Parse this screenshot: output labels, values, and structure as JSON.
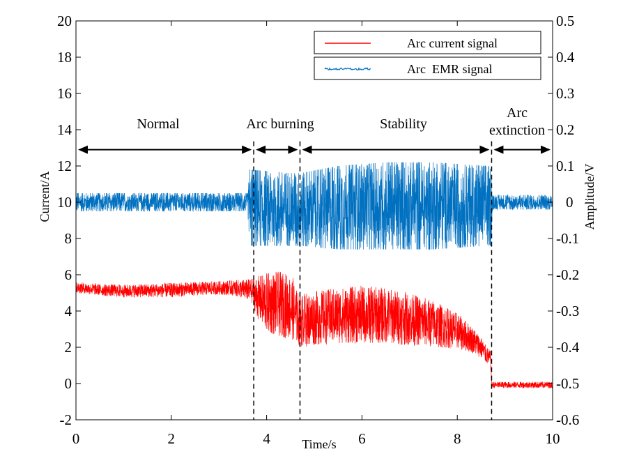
{
  "chart_data": {
    "type": "line",
    "x": {
      "label": "Time/s",
      "lim": [
        0,
        10
      ],
      "ticks": [
        0,
        2,
        4,
        6,
        8,
        10
      ]
    },
    "y_left": {
      "label": "Current/A",
      "lim": [
        -2,
        20
      ],
      "ticks": [
        -2,
        0,
        2,
        4,
        6,
        8,
        10,
        12,
        14,
        16,
        18,
        20
      ]
    },
    "y_right": {
      "label": "Amplitude/V",
      "lim": [
        -0.6,
        0.5
      ],
      "ticks": [
        "-0.6",
        "-0.5",
        "-0.4",
        "-0.3",
        "-0.2",
        "-0.1",
        "0",
        "0.1",
        "0.2",
        "0.3",
        "0.4",
        "0.5"
      ]
    },
    "series": [
      {
        "name": "Arc current signal",
        "axis": "left",
        "color": "#ff0000",
        "envelope_t": [
          0,
          0.5,
          1.0,
          1.5,
          2.0,
          2.5,
          3.0,
          3.3,
          3.6,
          3.7,
          3.8,
          4.0,
          4.2,
          4.4,
          4.55,
          4.6,
          4.7,
          5.0,
          5.5,
          6.0,
          6.5,
          7.0,
          7.5,
          8.0,
          8.3,
          8.5,
          8.6,
          8.7,
          8.72,
          8.75,
          9.0,
          9.5,
          10.0
        ],
        "envelope_hi": [
          5.6,
          5.5,
          5.45,
          5.5,
          5.55,
          5.6,
          5.65,
          5.7,
          5.75,
          5.8,
          5.9,
          6.1,
          6.2,
          6.1,
          5.9,
          5.3,
          4.95,
          5.1,
          5.3,
          5.4,
          5.3,
          5.0,
          4.6,
          3.9,
          3.2,
          2.6,
          2.1,
          1.8,
          0.1,
          0.1,
          0.1,
          0.1,
          0.1
        ],
        "envelope_lo": [
          5.0,
          4.85,
          4.75,
          4.75,
          4.75,
          4.85,
          4.9,
          4.85,
          4.6,
          4.4,
          3.6,
          2.8,
          2.6,
          2.5,
          2.4,
          2.3,
          2.0,
          2.1,
          2.2,
          2.2,
          2.2,
          2.1,
          2.0,
          1.9,
          1.7,
          1.4,
          1.1,
          1.0,
          -0.25,
          -0.25,
          -0.25,
          -0.25,
          -0.25
        ]
      },
      {
        "name": "Arc  EMR signal",
        "axis": "right",
        "color": "#0070c0",
        "envelope_t": [
          0,
          3.6,
          3.65,
          4.5,
          4.7,
          5.5,
          6.5,
          7.5,
          8.6,
          8.7,
          8.75,
          10.0
        ],
        "envelope_hi": [
          0.025,
          0.025,
          0.09,
          0.08,
          0.08,
          0.1,
          0.11,
          0.11,
          0.1,
          0.1,
          0.02,
          0.02
        ],
        "envelope_lo": [
          -0.025,
          -0.025,
          -0.12,
          -0.12,
          -0.12,
          -0.13,
          -0.13,
          -0.13,
          -0.12,
          -0.12,
          -0.02,
          -0.02
        ]
      }
    ],
    "markers": {
      "dashed_x": [
        3.73,
        4.7,
        8.72
      ],
      "phases": [
        {
          "label": "Normal",
          "from": 0,
          "to": 3.73
        },
        {
          "label": "Arc burning",
          "from": 3.73,
          "to": 4.7
        },
        {
          "label": "Stability",
          "from": 4.7,
          "to": 8.72
        },
        {
          "label_line1": "Arc",
          "label_line2": "extinction",
          "from": 8.72,
          "to": 10.0
        }
      ],
      "arrow_y": 12.9
    },
    "legend": {
      "position": "top-right"
    }
  }
}
